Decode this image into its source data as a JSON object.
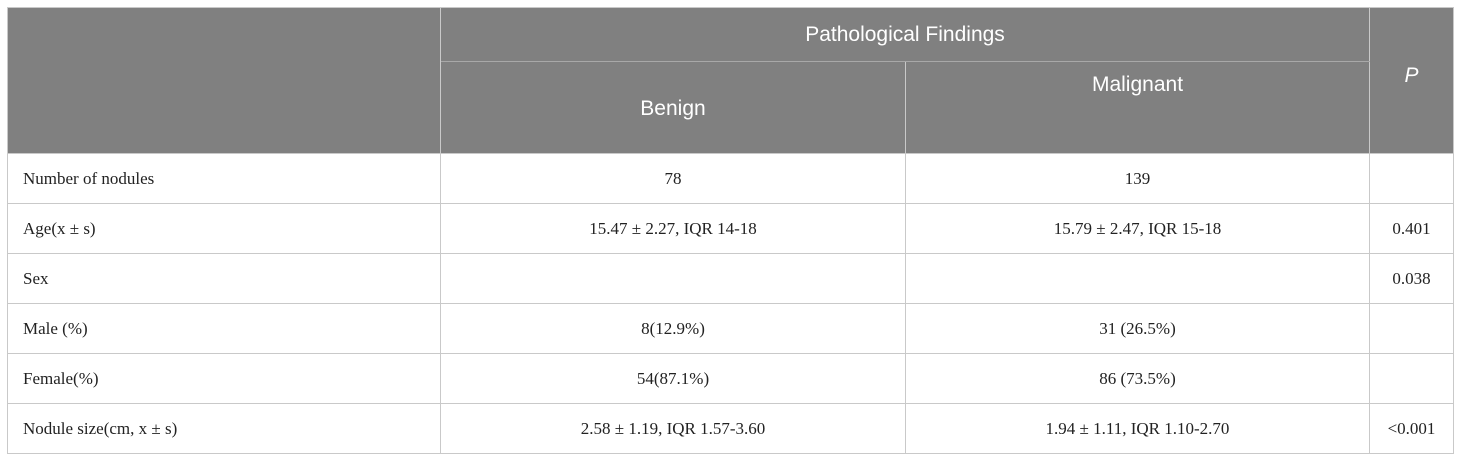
{
  "header": {
    "group_title": "Pathological Findings",
    "benign": "Benign",
    "malignant": "Malignant",
    "p": "P"
  },
  "rows": [
    {
      "label": "Number of nodules",
      "benign": "78",
      "malignant": "139",
      "p": ""
    },
    {
      "label": "Age(x ± s)",
      "benign": "15.47 ± 2.27, IQR 14-18",
      "malignant": "15.79 ± 2.47, IQR 15-18",
      "p": "0.401"
    },
    {
      "label": "Sex",
      "benign": "",
      "malignant": "",
      "p": "0.038"
    },
    {
      "label": "Male (%)",
      "benign": "8(12.9%)",
      "malignant": "31 (26.5%)",
      "p": ""
    },
    {
      "label": "Female(%)",
      "benign": "54(87.1%)",
      "malignant": "86 (73.5%)",
      "p": ""
    },
    {
      "label": "Nodule size(cm, x ± s)",
      "benign": "2.58 ± 1.19, IQR 1.57-3.60",
      "malignant": "1.94 ± 1.11, IQR 1.10-2.70",
      "p": "<0.001"
    }
  ]
}
